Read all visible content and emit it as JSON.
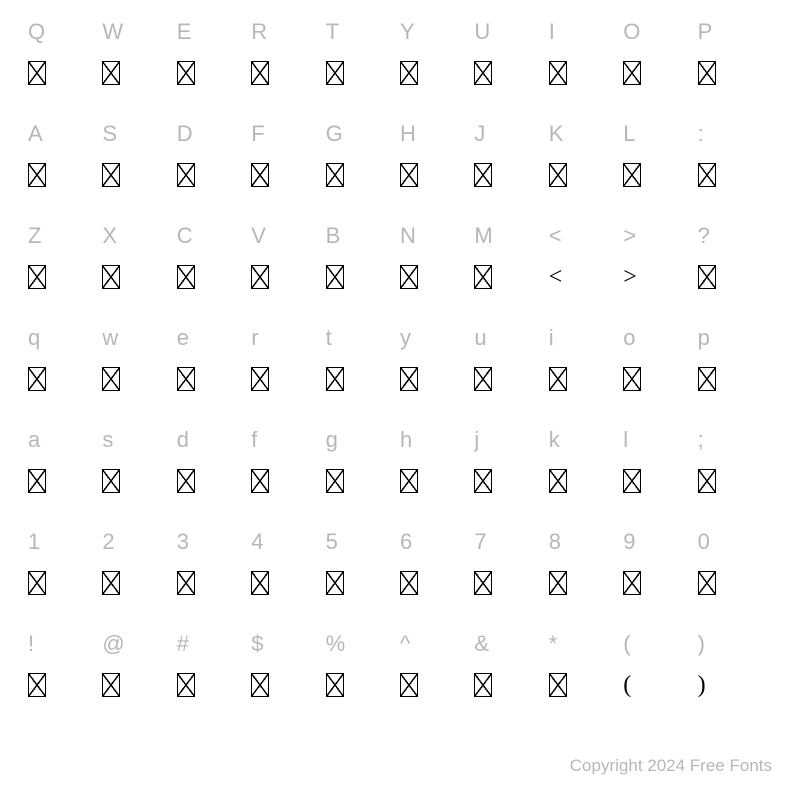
{
  "label_color": "#b7b7b7",
  "glyph_color": "#000000",
  "background_color": "#ffffff",
  "label_fontsize": 22,
  "glyph_fontsize": 24,
  "columns": 10,
  "rows": [
    {
      "labels": [
        "Q",
        "W",
        "E",
        "R",
        "T",
        "Y",
        "U",
        "I",
        "O",
        "P"
      ],
      "glyphs": [
        "tofu",
        "tofu",
        "tofu",
        "tofu",
        "tofu",
        "tofu",
        "tofu",
        "tofu",
        "tofu",
        "tofu"
      ]
    },
    {
      "labels": [
        "A",
        "S",
        "D",
        "F",
        "G",
        "H",
        "J",
        "K",
        "L",
        ":"
      ],
      "glyphs": [
        "tofu",
        "tofu",
        "tofu",
        "tofu",
        "tofu",
        "tofu",
        "tofu",
        "tofu",
        "tofu",
        "tofu"
      ]
    },
    {
      "labels": [
        "Z",
        "X",
        "C",
        "V",
        "B",
        "N",
        "M",
        "<",
        ">",
        "?"
      ],
      "glyphs": [
        "tofu",
        "tofu",
        "tofu",
        "tofu",
        "tofu",
        "tofu",
        "tofu",
        "<",
        ">",
        "tofu"
      ]
    },
    {
      "labels": [
        "q",
        "w",
        "e",
        "r",
        "t",
        "y",
        "u",
        "i",
        "o",
        "p"
      ],
      "glyphs": [
        "tofu",
        "tofu",
        "tofu",
        "tofu",
        "tofu",
        "tofu",
        "tofu",
        "tofu",
        "tofu",
        "tofu"
      ]
    },
    {
      "labels": [
        "a",
        "s",
        "d",
        "f",
        "g",
        "h",
        "j",
        "k",
        "l",
        ";"
      ],
      "glyphs": [
        "tofu",
        "tofu",
        "tofu",
        "tofu",
        "tofu",
        "tofu",
        "tofu",
        "tofu",
        "tofu",
        "tofu"
      ]
    },
    {
      "labels": [
        "1",
        "2",
        "3",
        "4",
        "5",
        "6",
        "7",
        "8",
        "9",
        "0"
      ],
      "glyphs": [
        "tofu",
        "tofu",
        "tofu",
        "tofu",
        "tofu",
        "tofu",
        "tofu",
        "tofu",
        "tofu",
        "tofu"
      ]
    },
    {
      "labels": [
        "!",
        "@",
        "#",
        "$",
        "%",
        "^",
        "&",
        "*",
        "(",
        ")"
      ],
      "glyphs": [
        "tofu",
        "tofu",
        "tofu",
        "tofu",
        "tofu",
        "tofu",
        "tofu",
        "tofu",
        "(",
        ")"
      ]
    }
  ],
  "copyright": "Copyright 2024 Free Fonts"
}
